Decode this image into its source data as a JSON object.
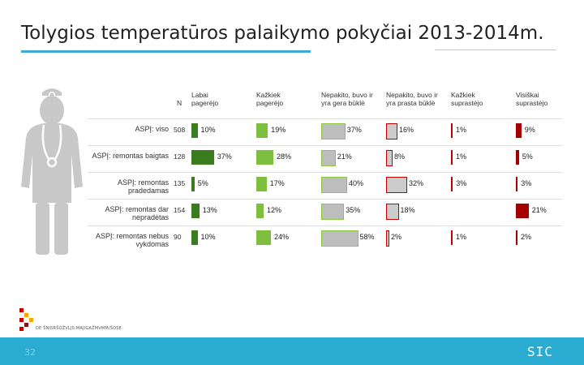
{
  "slide": {
    "title": "Tolygios temperatūros palaikymo pokyčiai 2013-2014m.",
    "page_number": "32",
    "footer_logo": "SIC",
    "logo_text": "DE ŠNISRŠOŽVLJS:MAJIGAŽMVMM/ŠOSE",
    "accent": "#2aabd2"
  },
  "table": {
    "n_header": "N",
    "columns": [
      {
        "label_line1": "Labai",
        "label_line2": "pagerėjo",
        "color": "#3a7d1e"
      },
      {
        "label_line1": "Kažkiek",
        "label_line2": "pagerėjo",
        "color": "#7fbf3f"
      },
      {
        "label_line1": "Nepakito, buvo ir",
        "label_line2": "yra gera būklė",
        "color": "#bdbdbd"
      },
      {
        "label_line1": "Nepakito, buvo ir",
        "label_line2": "yra prasta būklė",
        "color": "#cccccc"
      },
      {
        "label_line1": "Kažkiek",
        "label_line2": "suprastėjo",
        "color": "#c00000"
      },
      {
        "label_line1": "Visiškai",
        "label_line2": "suprastėjo",
        "color": "#a50000"
      }
    ],
    "rows": [
      {
        "label": "ASPĮ: viso",
        "n": "508",
        "values": [
          10,
          19,
          37,
          16,
          1,
          9
        ],
        "labels": [
          "10%",
          "19%",
          "37%",
          "16%",
          "1%",
          "9%"
        ]
      },
      {
        "label": "ASPĮ: remontas baigtas",
        "n": "128",
        "values": [
          37,
          28,
          21,
          8,
          1,
          5
        ],
        "labels": [
          "37%",
          "28%",
          "21%",
          "8%",
          "1%",
          "5%"
        ]
      },
      {
        "label": "ASPĮ: remontas pradedamas",
        "n": "135",
        "values": [
          5,
          17,
          40,
          32,
          3,
          3
        ],
        "labels": [
          "5%",
          "17%",
          "40%",
          "32%",
          "3%",
          "3%"
        ]
      },
      {
        "label": "ASPĮ: remontas dar nepradėtas",
        "n": "154",
        "values": [
          13,
          12,
          35,
          18,
          0,
          21
        ],
        "labels": [
          "13%",
          "12%",
          "35%",
          "18%",
          "",
          "21%"
        ]
      },
      {
        "label": "ASPĮ: remontas nebus vykdomas",
        "n": "90",
        "values": [
          10,
          24,
          58,
          2,
          1,
          2
        ],
        "labels": [
          "10%",
          "24%",
          "58%",
          "2%",
          "1%",
          "2%"
        ]
      }
    ]
  }
}
